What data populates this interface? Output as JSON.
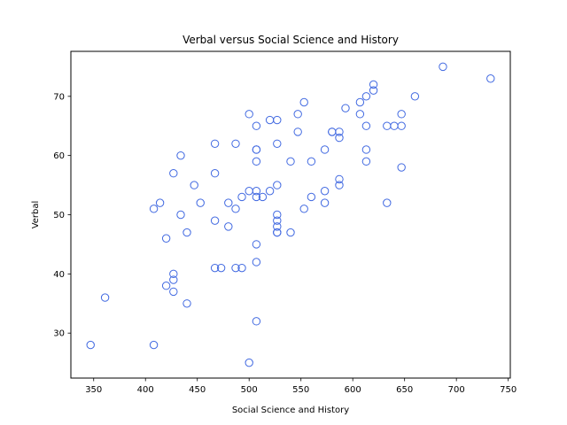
{
  "chart_data": {
    "type": "scatter",
    "title": "Verbal versus Social Science and History",
    "xlabel": "Social Science and History",
    "ylabel": "Verbal",
    "xlim": [
      328,
      752
    ],
    "ylim": [
      22.4,
      77.6
    ],
    "xticks": [
      350,
      400,
      450,
      500,
      550,
      600,
      650,
      700,
      750
    ],
    "yticks": [
      30,
      40,
      50,
      60,
      70
    ],
    "grid": false,
    "marker": "open-circle",
    "marker_color": "#4169e1",
    "series": [
      {
        "points": [
          [
            347,
            28
          ],
          [
            361,
            36
          ],
          [
            408,
            28
          ],
          [
            408,
            51
          ],
          [
            414,
            52
          ],
          [
            420,
            46
          ],
          [
            420,
            38
          ],
          [
            427,
            57
          ],
          [
            427,
            40
          ],
          [
            427,
            39
          ],
          [
            427,
            37
          ],
          [
            434,
            60
          ],
          [
            434,
            50
          ],
          [
            440,
            47
          ],
          [
            440,
            35
          ],
          [
            447,
            55
          ],
          [
            453,
            52
          ],
          [
            467,
            62
          ],
          [
            467,
            57
          ],
          [
            467,
            49
          ],
          [
            467,
            41
          ],
          [
            473,
            41
          ],
          [
            480,
            52
          ],
          [
            480,
            48
          ],
          [
            487,
            62
          ],
          [
            487,
            51
          ],
          [
            487,
            41
          ],
          [
            493,
            53
          ],
          [
            493,
            41
          ],
          [
            500,
            67
          ],
          [
            500,
            54
          ],
          [
            500,
            25
          ],
          [
            507,
            65
          ],
          [
            507,
            61
          ],
          [
            507,
            61
          ],
          [
            507,
            59
          ],
          [
            507,
            54
          ],
          [
            507,
            53
          ],
          [
            507,
            45
          ],
          [
            507,
            42
          ],
          [
            507,
            32
          ],
          [
            513,
            53
          ],
          [
            520,
            66
          ],
          [
            520,
            54
          ],
          [
            527,
            66
          ],
          [
            527,
            62
          ],
          [
            527,
            55
          ],
          [
            527,
            50
          ],
          [
            527,
            49
          ],
          [
            527,
            48
          ],
          [
            527,
            47
          ],
          [
            527,
            47
          ],
          [
            540,
            59
          ],
          [
            540,
            47
          ],
          [
            547,
            67
          ],
          [
            547,
            64
          ],
          [
            553,
            69
          ],
          [
            553,
            51
          ],
          [
            560,
            59
          ],
          [
            560,
            53
          ],
          [
            573,
            61
          ],
          [
            573,
            54
          ],
          [
            573,
            52
          ],
          [
            580,
            64
          ],
          [
            580,
            64
          ],
          [
            587,
            64
          ],
          [
            587,
            63
          ],
          [
            587,
            56
          ],
          [
            587,
            55
          ],
          [
            593,
            68
          ],
          [
            607,
            69
          ],
          [
            607,
            67
          ],
          [
            613,
            70
          ],
          [
            613,
            65
          ],
          [
            613,
            61
          ],
          [
            613,
            59
          ],
          [
            620,
            72
          ],
          [
            620,
            71
          ],
          [
            633,
            65
          ],
          [
            633,
            52
          ],
          [
            640,
            65
          ],
          [
            647,
            67
          ],
          [
            647,
            65
          ],
          [
            647,
            58
          ],
          [
            660,
            70
          ],
          [
            687,
            75
          ],
          [
            733,
            73
          ]
        ]
      }
    ]
  }
}
